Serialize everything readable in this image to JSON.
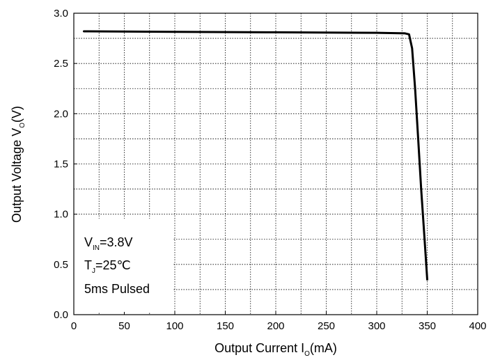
{
  "chart_data": {
    "type": "line",
    "xlabel": {
      "main": "Output Current I",
      "sub": "O",
      "rest": "(mA)"
    },
    "ylabel": {
      "main": "Output Voltage V",
      "sub": "O",
      "rest": "(V)"
    },
    "xlim": [
      0,
      400
    ],
    "ylim": [
      0.0,
      3.0
    ],
    "x_ticks": [
      "0",
      "50",
      "100",
      "150",
      "200",
      "250",
      "300",
      "350",
      "400"
    ],
    "y_ticks": [
      "0.0",
      "0.5",
      "1.0",
      "1.5",
      "2.0",
      "2.5",
      "3.0"
    ],
    "grid": "dotted, major every 50 mA / 0.5 V with minor lines at 25 mA / 0.25 V",
    "series": [
      {
        "color": "#000000",
        "x": [
          10,
          100,
          200,
          300,
          328,
          332,
          335,
          338,
          341,
          344,
          347,
          350
        ],
        "y": [
          2.82,
          2.815,
          2.81,
          2.805,
          2.8,
          2.79,
          2.65,
          2.25,
          1.75,
          1.25,
          0.8,
          0.35
        ]
      }
    ],
    "annotations": {
      "vin": {
        "main": "V",
        "sub": "IN",
        "rest": "=3.8V"
      },
      "tj": {
        "main": "T",
        "sub": "J",
        "rest": "=25℃"
      },
      "pulse": "5ms Pulsed"
    }
  }
}
